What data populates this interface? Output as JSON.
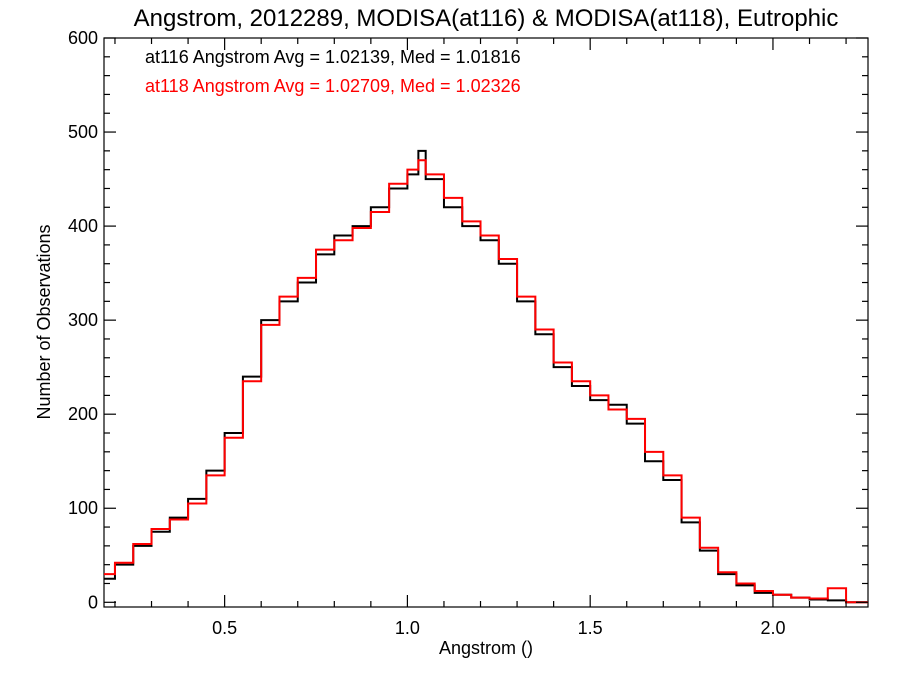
{
  "chart_data": {
    "type": "line",
    "title": "Angstrom, 2012289, MODISA(at116) & MODISA(at118), Eutrophic",
    "xlabel": "Angstrom ()",
    "ylabel": "Number of Observations",
    "xlim": [
      0.17,
      2.26
    ],
    "ylim": [
      -5,
      600
    ],
    "x_ticks": [
      0.5,
      1.0,
      1.5,
      2.0
    ],
    "x_tick_labels": [
      "0.5",
      "1.0",
      "1.5",
      "2.0"
    ],
    "y_ticks": [
      0,
      100,
      200,
      300,
      400,
      500,
      600
    ],
    "y_tick_labels": [
      "0",
      "100",
      "200",
      "300",
      "400",
      "500",
      "600"
    ],
    "grid": false,
    "legend_position": "top-left",
    "annotations": [
      {
        "text": "at116 Angstrom Avg = 1.02139, Med = 1.01816",
        "color": "#000000"
      },
      {
        "text": "at118 Angstrom Avg = 1.02709, Med = 1.02326",
        "color": "#ff0000"
      }
    ],
    "series": [
      {
        "color": "#000000",
        "style": "step",
        "x": [
          0.17,
          0.2,
          0.25,
          0.3,
          0.35,
          0.4,
          0.45,
          0.5,
          0.55,
          0.6,
          0.65,
          0.7,
          0.75,
          0.8,
          0.85,
          0.9,
          0.95,
          1.0,
          1.03,
          1.05,
          1.1,
          1.15,
          1.2,
          1.25,
          1.3,
          1.35,
          1.4,
          1.45,
          1.5,
          1.55,
          1.6,
          1.65,
          1.7,
          1.75,
          1.8,
          1.85,
          1.9,
          1.95,
          2.0,
          2.05,
          2.1,
          2.15,
          2.2,
          2.26
        ],
        "values": [
          25,
          40,
          60,
          75,
          90,
          110,
          140,
          180,
          240,
          300,
          320,
          340,
          370,
          390,
          400,
          420,
          440,
          455,
          480,
          450,
          420,
          400,
          385,
          360,
          320,
          285,
          250,
          230,
          215,
          210,
          190,
          150,
          130,
          85,
          55,
          30,
          18,
          10,
          8,
          5,
          3,
          2,
          0,
          0
        ]
      },
      {
        "color": "#ff0000",
        "style": "step",
        "x": [
          0.17,
          0.2,
          0.25,
          0.3,
          0.35,
          0.4,
          0.45,
          0.5,
          0.55,
          0.6,
          0.65,
          0.7,
          0.75,
          0.8,
          0.85,
          0.9,
          0.95,
          1.0,
          1.03,
          1.05,
          1.1,
          1.15,
          1.2,
          1.25,
          1.3,
          1.35,
          1.4,
          1.45,
          1.5,
          1.55,
          1.6,
          1.65,
          1.7,
          1.75,
          1.8,
          1.85,
          1.9,
          1.95,
          2.0,
          2.05,
          2.1,
          2.15,
          2.2,
          2.26
        ],
        "values": [
          30,
          42,
          62,
          78,
          88,
          105,
          135,
          175,
          235,
          295,
          325,
          345,
          375,
          385,
          398,
          415,
          445,
          460,
          470,
          455,
          430,
          405,
          390,
          365,
          325,
          290,
          255,
          235,
          220,
          205,
          195,
          160,
          135,
          90,
          58,
          32,
          20,
          12,
          8,
          5,
          4,
          15,
          0,
          0
        ]
      }
    ]
  }
}
